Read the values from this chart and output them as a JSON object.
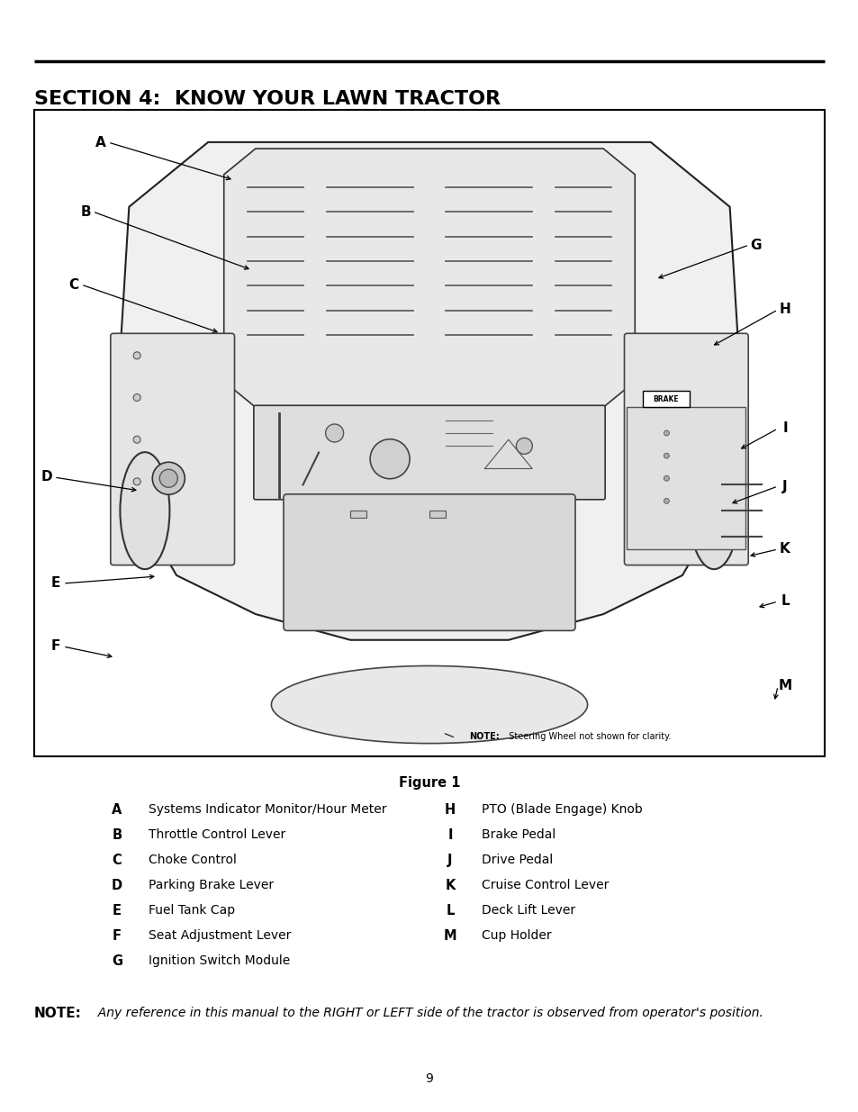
{
  "page_bg": "#ffffff",
  "title": "SECTION 4:  KNOW YOUR LAWN TRACTOR",
  "title_fontsize": 15.5,
  "figure_label": "Figure 1",
  "figure_label_fontsize": 10.5,
  "legend_left": [
    [
      "A",
      "Systems Indicator Monitor/Hour Meter"
    ],
    [
      "B",
      "Throttle Control Lever"
    ],
    [
      "C",
      "Choke Control"
    ],
    [
      "D",
      "Parking Brake Lever"
    ],
    [
      "E",
      "Fuel Tank Cap"
    ],
    [
      "F",
      "Seat Adjustment Lever"
    ],
    [
      "G",
      "Ignition Switch Module"
    ]
  ],
  "legend_right": [
    [
      "H",
      "PTO (Blade Engage) Knob"
    ],
    [
      "I",
      "Brake Pedal"
    ],
    [
      "J",
      "Drive Pedal"
    ],
    [
      "K",
      "Cruise Control Lever"
    ],
    [
      "L",
      "Deck Lift Lever"
    ],
    [
      "M",
      "Cup Holder"
    ]
  ],
  "note_bold": "NOTE:",
  "note_italic": "  Any reference in this manual to the RIGHT or LEFT side of the tractor is observed from operator's position.",
  "page_number": "9",
  "text_color": "#000000"
}
